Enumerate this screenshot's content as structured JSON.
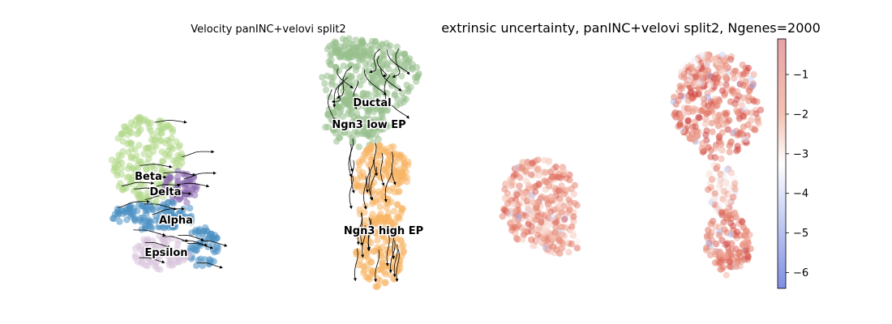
{
  "chart_data": [
    {
      "type": "scatter",
      "title": "Velocity panINC+velovi split2",
      "xlabel": "",
      "ylabel": "",
      "grid": false,
      "legend": "on data",
      "overlay": "velocity streamlines",
      "clusters": [
        {
          "name": "Ductal",
          "color": "#98bf8c"
        },
        {
          "name": "Ngn3 low EP",
          "color": "#98bf8c"
        },
        {
          "name": "Ngn3 high EP",
          "color": "#f7b564"
        },
        {
          "name": "Beta",
          "color": "#b2d98a"
        },
        {
          "name": "Delta",
          "color": "#8c6bb1"
        },
        {
          "name": "Alpha",
          "color": "#4a90c2"
        },
        {
          "name": "Epsilon",
          "color": "#d9c4dd"
        }
      ]
    },
    {
      "type": "scatter",
      "title": "extrinsic uncertainty, panINC+velovi split2, Ngenes=2000",
      "xlabel": "",
      "ylabel": "",
      "grid": false,
      "colorbar": {
        "position": "right",
        "ticks": [
          -1,
          -2,
          -3,
          -4,
          -5,
          -6
        ],
        "tick_labels": [
          "−1",
          "−2",
          "−3",
          "−4",
          "−5",
          "−6"
        ],
        "range": [
          -6.4,
          -0.1
        ],
        "cmap": [
          "#7f8ee0",
          "#c9d3f5",
          "#ffffff",
          "#f5c2b3",
          "#e2735e",
          "#c4262c"
        ]
      }
    }
  ]
}
